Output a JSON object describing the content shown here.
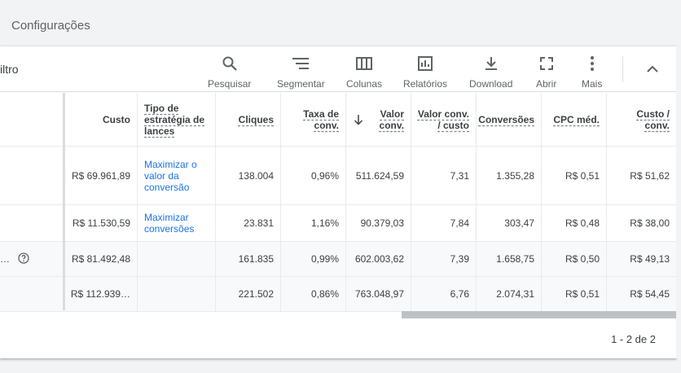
{
  "header": {
    "title": "Configurações"
  },
  "toolbar": {
    "filter_label": "iltro",
    "tools": [
      {
        "label": "Pesquisar",
        "icon": "search-icon"
      },
      {
        "label": "Segmentar",
        "icon": "segment-icon"
      },
      {
        "label": "Colunas",
        "icon": "columns-icon"
      },
      {
        "label": "Relatórios",
        "icon": "reports-icon"
      },
      {
        "label": "Download",
        "icon": "download-icon"
      },
      {
        "label": "Abrir",
        "icon": "expand-icon"
      },
      {
        "label": "Mais",
        "icon": "more-vert-icon"
      }
    ]
  },
  "table": {
    "columns": [
      {
        "label": "Custo"
      },
      {
        "label": "Tipo de estratégia de lances"
      },
      {
        "label": "Cliques"
      },
      {
        "label": "Taxa de conv."
      },
      {
        "label": "Valor conv.",
        "sorted": "desc"
      },
      {
        "label": "Valor conv. / custo"
      },
      {
        "label": "Conversões"
      },
      {
        "label": "CPC méd."
      },
      {
        "label": "Custo / conv."
      }
    ],
    "rows": [
      {
        "custo": "R$ 69.961,89",
        "estrategia": "Maximizar o valor da conversão",
        "cliques": "138.004",
        "taxa": "0,96%",
        "valor": "511.624,59",
        "valor_custo": "7,31",
        "conversoes": "1.355,28",
        "cpc": "R$ 0,51",
        "custo_conv": "R$ 51,62"
      },
      {
        "custo": "R$ 11.530,59",
        "estrategia": "Maximizar conversões",
        "cliques": "23.831",
        "taxa": "1,16%",
        "valor": "90.379,03",
        "valor_custo": "7,84",
        "conversoes": "303,47",
        "cpc": "R$ 0,48",
        "custo_conv": "R$ 38,00"
      }
    ],
    "totals": [
      {
        "leading": "…",
        "custo": "R$ 81.492,48",
        "estrategia": "",
        "cliques": "161.835",
        "taxa": "0,99%",
        "valor": "602.003,62",
        "valor_custo": "7,39",
        "conversoes": "1.658,75",
        "cpc": "R$ 0,50",
        "custo_conv": "R$ 49,13"
      },
      {
        "custo": "R$ 112.939…",
        "estrategia": "",
        "cliques": "221.502",
        "taxa": "0,86%",
        "valor": "763.048,97",
        "valor_custo": "6,76",
        "conversoes": "2.074,31",
        "cpc": "R$ 0,51",
        "custo_conv": "R$ 54,45"
      }
    ]
  },
  "pagination": {
    "text": "1 - 2 de 2"
  }
}
